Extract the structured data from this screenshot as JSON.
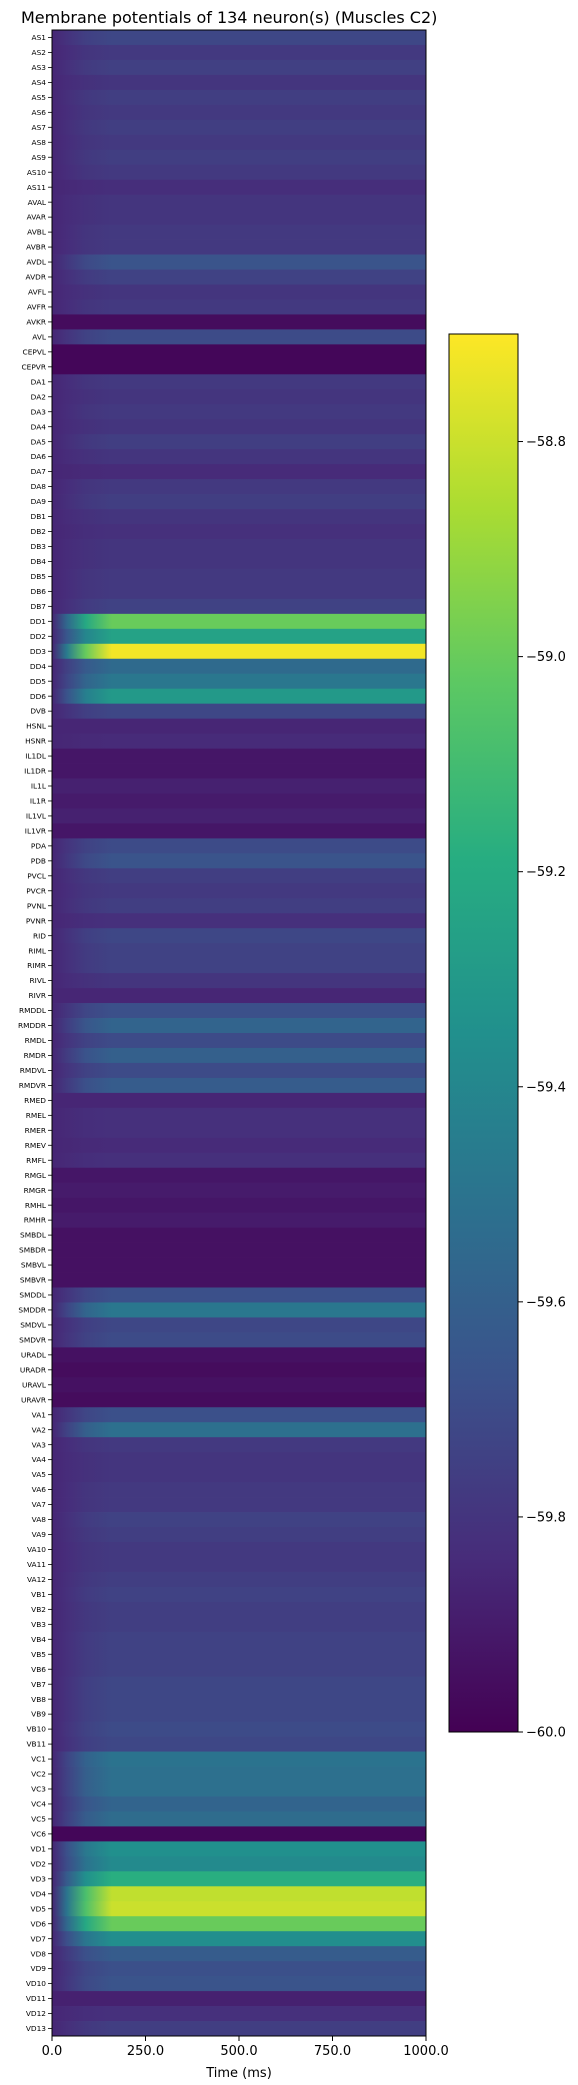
{
  "chart_data": {
    "type": "heatmap",
    "title": "Membrane potentials of 134 neuron(s) (Muscles C2)",
    "xlabel": "Time (ms)",
    "ylabel": "",
    "xlim": [
      0,
      1000
    ],
    "x_ticks": [
      0,
      250,
      500,
      750,
      1000
    ],
    "x_tick_labels": [
      "0.0",
      "250.0",
      "500.0",
      "750.0",
      "1000.0"
    ],
    "colormap": "viridis",
    "colorbar": {
      "vmin": -60.0,
      "vmax": -58.7,
      "ticks": [
        -60.0,
        -59.8,
        -59.6,
        -59.4,
        -59.2,
        -59.0,
        -58.8
      ],
      "tick_labels": [
        "−60.0",
        "−59.8",
        "−59.6",
        "−59.4",
        "−59.2",
        "−59.0",
        "−58.8"
      ]
    },
    "rows": [
      {
        "name": "AS1",
        "v": -59.72
      },
      {
        "name": "AS2",
        "v": -59.78
      },
      {
        "name": "AS3",
        "v": -59.75
      },
      {
        "name": "AS4",
        "v": -59.8
      },
      {
        "name": "AS5",
        "v": -59.76
      },
      {
        "name": "AS6",
        "v": -59.78
      },
      {
        "name": "AS7",
        "v": -59.76
      },
      {
        "name": "AS8",
        "v": -59.78
      },
      {
        "name": "AS9",
        "v": -59.76
      },
      {
        "name": "AS10",
        "v": -59.78
      },
      {
        "name": "AS11",
        "v": -59.83
      },
      {
        "name": "AVAL",
        "v": -59.8
      },
      {
        "name": "AVAR",
        "v": -59.8
      },
      {
        "name": "AVBL",
        "v": -59.78
      },
      {
        "name": "AVBR",
        "v": -59.78
      },
      {
        "name": "AVDL",
        "v": -59.66
      },
      {
        "name": "AVDR",
        "v": -59.74
      },
      {
        "name": "AVFL",
        "v": -59.8
      },
      {
        "name": "AVFR",
        "v": -59.78
      },
      {
        "name": "AVKR",
        "v": -59.96
      },
      {
        "name": "AVL",
        "v": -59.7
      },
      {
        "name": "CEPVL",
        "v": -59.98
      },
      {
        "name": "CEPVR",
        "v": -59.98
      },
      {
        "name": "DA1",
        "v": -59.78
      },
      {
        "name": "DA2",
        "v": -59.8
      },
      {
        "name": "DA3",
        "v": -59.78
      },
      {
        "name": "DA4",
        "v": -59.8
      },
      {
        "name": "DA5",
        "v": -59.76
      },
      {
        "name": "DA6",
        "v": -59.8
      },
      {
        "name": "DA7",
        "v": -59.84
      },
      {
        "name": "DA8",
        "v": -59.78
      },
      {
        "name": "DA9",
        "v": -59.76
      },
      {
        "name": "DB1",
        "v": -59.8
      },
      {
        "name": "DB2",
        "v": -59.82
      },
      {
        "name": "DB3",
        "v": -59.8
      },
      {
        "name": "DB4",
        "v": -59.8
      },
      {
        "name": "DB5",
        "v": -59.78
      },
      {
        "name": "DB6",
        "v": -59.78
      },
      {
        "name": "DB7",
        "v": -59.74
      },
      {
        "name": "DD1",
        "v": -59.0
      },
      {
        "name": "DD2",
        "v": -59.25
      },
      {
        "name": "DD3",
        "v": -58.72
      },
      {
        "name": "DD4",
        "v": -59.55
      },
      {
        "name": "DD5",
        "v": -59.48
      },
      {
        "name": "DD6",
        "v": -59.3
      },
      {
        "name": "DVB",
        "v": -59.72
      },
      {
        "name": "HSNL",
        "v": -59.86
      },
      {
        "name": "HSNR",
        "v": -59.84
      },
      {
        "name": "IL1DL",
        "v": -59.92
      },
      {
        "name": "IL1DR",
        "v": -59.92
      },
      {
        "name": "IL1L",
        "v": -59.88
      },
      {
        "name": "IL1R",
        "v": -59.9
      },
      {
        "name": "IL1VL",
        "v": -59.88
      },
      {
        "name": "IL1VR",
        "v": -59.92
      },
      {
        "name": "PDA",
        "v": -59.7
      },
      {
        "name": "PDB",
        "v": -59.66
      },
      {
        "name": "PVCL",
        "v": -59.76
      },
      {
        "name": "PVCR",
        "v": -59.78
      },
      {
        "name": "PVNL",
        "v": -59.76
      },
      {
        "name": "PVNR",
        "v": -59.82
      },
      {
        "name": "RID",
        "v": -59.72
      },
      {
        "name": "RIML",
        "v": -59.74
      },
      {
        "name": "RIMR",
        "v": -59.74
      },
      {
        "name": "RIVL",
        "v": -59.8
      },
      {
        "name": "RIVR",
        "v": -59.86
      },
      {
        "name": "RMDDL",
        "v": -59.68
      },
      {
        "name": "RMDDR",
        "v": -59.58
      },
      {
        "name": "RMDL",
        "v": -59.7
      },
      {
        "name": "RMDR",
        "v": -59.6
      },
      {
        "name": "RMDVL",
        "v": -59.7
      },
      {
        "name": "RMDVR",
        "v": -59.62
      },
      {
        "name": "RMED",
        "v": -59.86
      },
      {
        "name": "RMEL",
        "v": -59.82
      },
      {
        "name": "RMER",
        "v": -59.82
      },
      {
        "name": "RMEV",
        "v": -59.84
      },
      {
        "name": "RMFL",
        "v": -59.82
      },
      {
        "name": "RMGL",
        "v": -59.92
      },
      {
        "name": "RMGR",
        "v": -59.9
      },
      {
        "name": "RMHL",
        "v": -59.92
      },
      {
        "name": "RMHR",
        "v": -59.9
      },
      {
        "name": "SMBDL",
        "v": -59.94
      },
      {
        "name": "SMBDR",
        "v": -59.94
      },
      {
        "name": "SMBVL",
        "v": -59.94
      },
      {
        "name": "SMBVR",
        "v": -59.94
      },
      {
        "name": "SMDDL",
        "v": -59.68
      },
      {
        "name": "SMDDR",
        "v": -59.48
      },
      {
        "name": "SMDVL",
        "v": -59.72
      },
      {
        "name": "SMDVR",
        "v": -59.7
      },
      {
        "name": "URADL",
        "v": -59.94
      },
      {
        "name": "URADR",
        "v": -59.96
      },
      {
        "name": "URAVL",
        "v": -59.94
      },
      {
        "name": "URAVR",
        "v": -59.96
      },
      {
        "name": "VA1",
        "v": -59.68
      },
      {
        "name": "VA2",
        "v": -59.52
      },
      {
        "name": "VA3",
        "v": -59.78
      },
      {
        "name": "VA4",
        "v": -59.8
      },
      {
        "name": "VA5",
        "v": -59.8
      },
      {
        "name": "VA6",
        "v": -59.78
      },
      {
        "name": "VA7",
        "v": -59.78
      },
      {
        "name": "VA8",
        "v": -59.74
      },
      {
        "name": "VA9",
        "v": -59.76
      },
      {
        "name": "VA10",
        "v": -59.78
      },
      {
        "name": "VA11",
        "v": -59.78
      },
      {
        "name": "VA12",
        "v": -59.76
      },
      {
        "name": "VB1",
        "v": -59.74
      },
      {
        "name": "VB2",
        "v": -59.76
      },
      {
        "name": "VB3",
        "v": -59.76
      },
      {
        "name": "VB4",
        "v": -59.74
      },
      {
        "name": "VB5",
        "v": -59.74
      },
      {
        "name": "VB6",
        "v": -59.74
      },
      {
        "name": "VB7",
        "v": -59.72
      },
      {
        "name": "VB8",
        "v": -59.72
      },
      {
        "name": "VB9",
        "v": -59.72
      },
      {
        "name": "VB10",
        "v": -59.7
      },
      {
        "name": "VB11",
        "v": -59.72
      },
      {
        "name": "VC1",
        "v": -59.5
      },
      {
        "name": "VC2",
        "v": -59.52
      },
      {
        "name": "VC3",
        "v": -59.52
      },
      {
        "name": "VC4",
        "v": -59.58
      },
      {
        "name": "VC5",
        "v": -59.54
      },
      {
        "name": "VC6",
        "v": -59.98
      },
      {
        "name": "VD1",
        "v": -59.35
      },
      {
        "name": "VD2",
        "v": -59.38
      },
      {
        "name": "VD3",
        "v": -59.18
      },
      {
        "name": "VD4",
        "v": -58.82
      },
      {
        "name": "VD5",
        "v": -58.8
      },
      {
        "name": "VD6",
        "v": -59.0
      },
      {
        "name": "VD7",
        "v": -59.36
      },
      {
        "name": "VD8",
        "v": -59.62
      },
      {
        "name": "VD9",
        "v": -59.68
      },
      {
        "name": "VD10",
        "v": -59.66
      },
      {
        "name": "VD11",
        "v": -59.88
      },
      {
        "name": "VD12",
        "v": -59.82
      },
      {
        "name": "VD13",
        "v": -59.76
      }
    ]
  }
}
